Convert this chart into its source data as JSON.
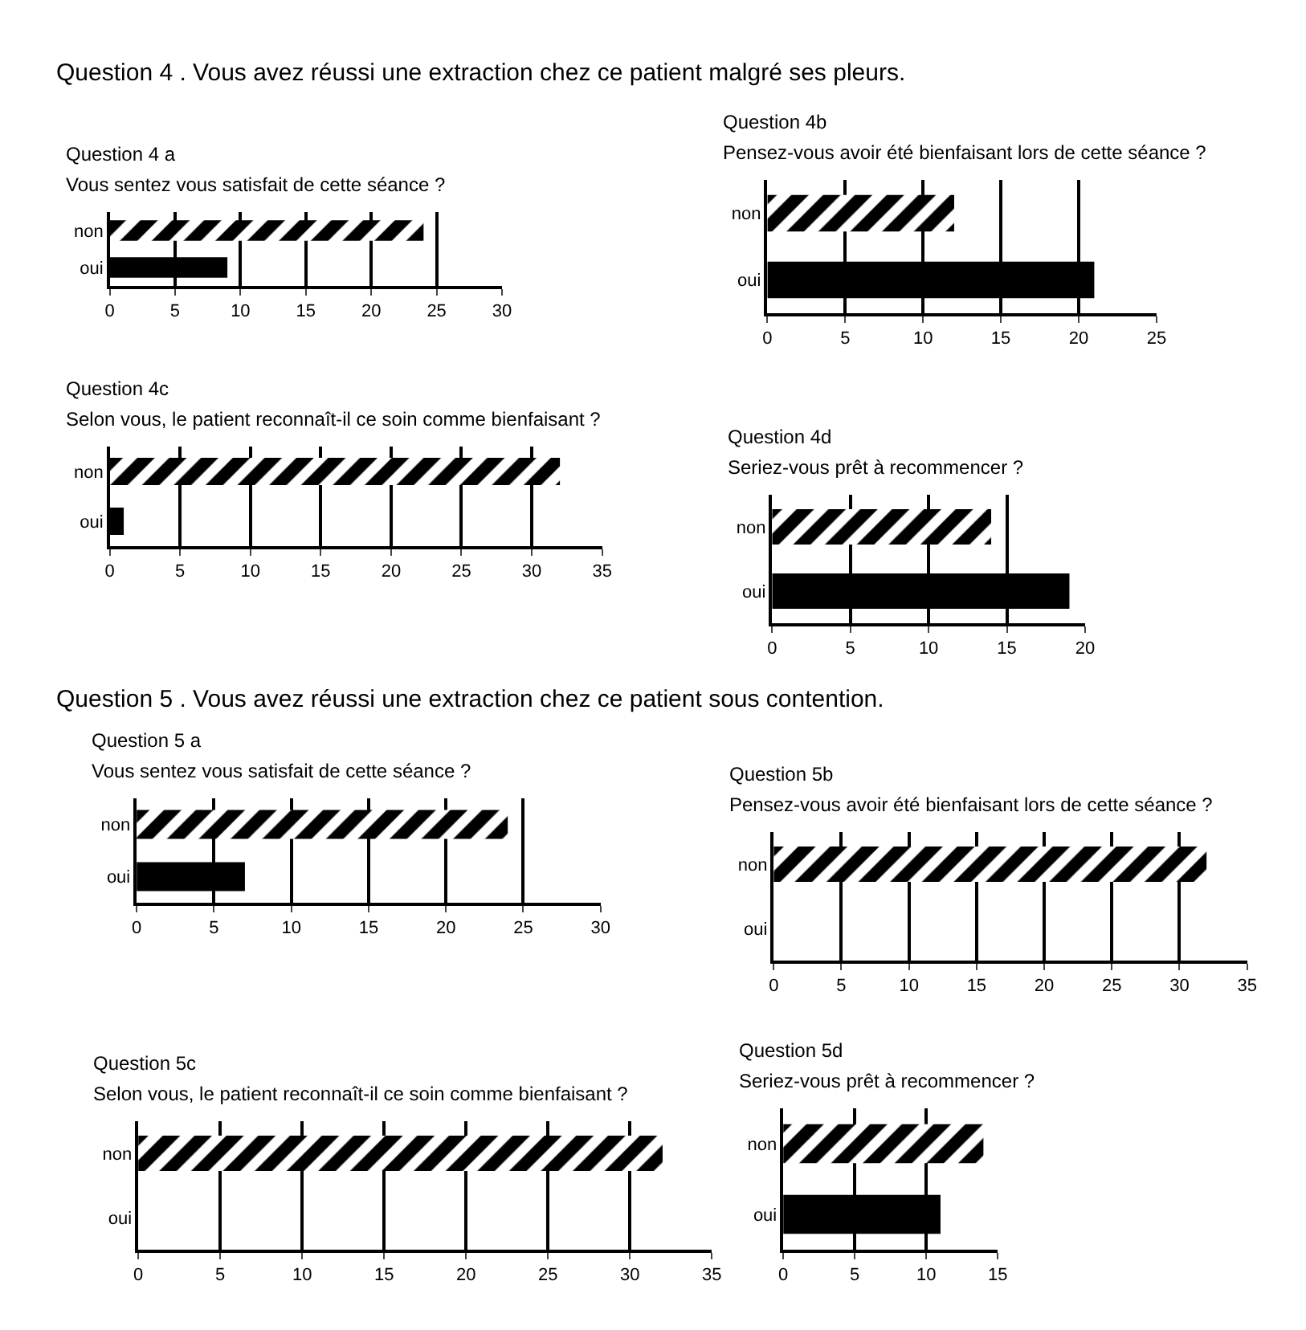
{
  "chart_data": [
    {
      "type": "bar",
      "orientation": "horizontal",
      "title": "Question 4 a",
      "subtitle": "Vous sentez vous satisfait de cette séance ?",
      "annotations": [
        "Question 4 . Vous avez réussi une extraction chez ce patient malgré ses pleurs."
      ],
      "categories": [
        "non",
        "oui"
      ],
      "values": [
        24,
        9
      ],
      "colors": [
        "#000000",
        "#000000"
      ],
      "xlim": [
        0,
        30
      ],
      "xticks": [
        0,
        5,
        10,
        15,
        20,
        25,
        30
      ],
      "grid": "x"
    },
    {
      "type": "bar",
      "orientation": "horizontal",
      "title": "Question 4b",
      "subtitle": "Pensez-vous avoir été bienfaisant lors de cette séance ?",
      "categories": [
        "non",
        "oui"
      ],
      "values": [
        12,
        21
      ],
      "colors": [
        "#000000",
        "#000000"
      ],
      "xlim": [
        0,
        25
      ],
      "xticks": [
        0,
        5,
        10,
        15,
        20,
        25
      ],
      "grid": "x"
    },
    {
      "type": "bar",
      "orientation": "horizontal",
      "title": "Question 4c",
      "subtitle": "Selon vous, le patient reconnaît-il ce soin comme bienfaisant ?",
      "categories": [
        "non",
        "oui"
      ],
      "values": [
        32,
        1
      ],
      "colors": [
        "#000000",
        "#000000"
      ],
      "xlim": [
        0,
        35
      ],
      "xticks": [
        0,
        5,
        10,
        15,
        20,
        25,
        30,
        35
      ],
      "grid": "x"
    },
    {
      "type": "bar",
      "orientation": "horizontal",
      "title": "Question 4d",
      "subtitle": "Seriez-vous prêt à recommencer ?",
      "categories": [
        "non",
        "oui"
      ],
      "values": [
        14,
        19
      ],
      "colors": [
        "#000000",
        "#000000"
      ],
      "xlim": [
        0,
        20
      ],
      "xticks": [
        0,
        5,
        10,
        15,
        20
      ],
      "grid": "x"
    },
    {
      "type": "bar",
      "orientation": "horizontal",
      "title": "Question 5 a",
      "subtitle": "Vous sentez vous satisfait de cette séance ?",
      "annotations": [
        "Question 5 . Vous avez réussi une extraction chez ce patient sous contention."
      ],
      "categories": [
        "non",
        "oui"
      ],
      "values": [
        24,
        7
      ],
      "colors": [
        "#000000",
        "#000000"
      ],
      "xlim": [
        0,
        30
      ],
      "xticks": [
        0,
        5,
        10,
        15,
        20,
        25,
        30
      ],
      "grid": "x"
    },
    {
      "type": "bar",
      "orientation": "horizontal",
      "title": "Question 5b",
      "subtitle": "Pensez-vous avoir été bienfaisant lors de cette séance ?",
      "categories": [
        "non",
        "oui"
      ],
      "values": [
        32,
        0
      ],
      "colors": [
        "#000000",
        "#000000"
      ],
      "xlim": [
        0,
        35
      ],
      "xticks": [
        0,
        5,
        10,
        15,
        20,
        25,
        30,
        35
      ],
      "grid": "x"
    },
    {
      "type": "bar",
      "orientation": "horizontal",
      "title": "Question 5c",
      "subtitle": "Selon vous, le patient reconnaît-il ce soin comme bienfaisant ?",
      "categories": [
        "non",
        "oui"
      ],
      "values": [
        32,
        0
      ],
      "colors": [
        "#000000",
        "#000000"
      ],
      "xlim": [
        0,
        35
      ],
      "xticks": [
        0,
        5,
        10,
        15,
        20,
        25,
        30,
        35
      ],
      "grid": "x"
    },
    {
      "type": "bar",
      "orientation": "horizontal",
      "title": "Question 5d",
      "subtitle": "Seriez-vous prêt à recommencer ?",
      "categories": [
        "non",
        "oui"
      ],
      "values": [
        14,
        11
      ],
      "colors": [
        "#000000",
        "#000000"
      ],
      "xlim": [
        0,
        15
      ],
      "xticks": [
        0,
        5,
        10,
        15
      ],
      "grid": "x"
    }
  ]
}
